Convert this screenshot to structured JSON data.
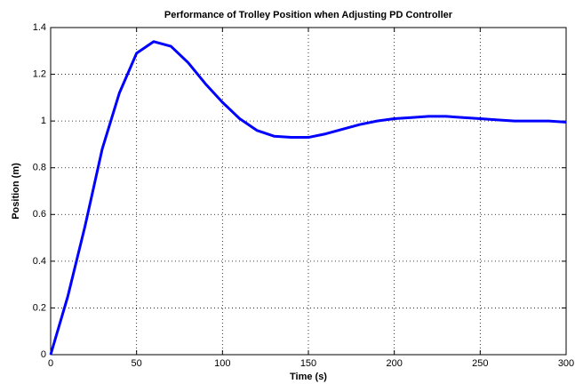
{
  "chart_data": {
    "type": "line",
    "title": "Performance of Trolley Position when Adjusting PD Controller",
    "xlabel": "Time (s)",
    "ylabel": "Position (m)",
    "x": [
      0,
      10,
      20,
      30,
      40,
      50,
      60,
      70,
      80,
      90,
      100,
      110,
      120,
      130,
      140,
      150,
      160,
      170,
      180,
      190,
      200,
      210,
      220,
      230,
      240,
      250,
      260,
      270,
      280,
      290,
      300
    ],
    "series": [
      {
        "name": "Position",
        "color": "#0000ff",
        "values": [
          0,
          0.25,
          0.55,
          0.88,
          1.12,
          1.29,
          1.34,
          1.32,
          1.25,
          1.16,
          1.08,
          1.01,
          0.96,
          0.935,
          0.93,
          0.93,
          0.945,
          0.965,
          0.985,
          1.0,
          1.01,
          1.015,
          1.02,
          1.02,
          1.015,
          1.01,
          1.005,
          1.0,
          1.0,
          1.0,
          0.995
        ]
      }
    ],
    "xlim": [
      0,
      300
    ],
    "xticks": [
      0,
      50,
      100,
      150,
      200,
      250,
      300
    ],
    "ylim": [
      0,
      1.4
    ],
    "yticks": [
      0,
      0.2,
      0.4,
      0.6,
      0.8,
      1,
      1.2,
      1.4
    ],
    "grid": true
  }
}
